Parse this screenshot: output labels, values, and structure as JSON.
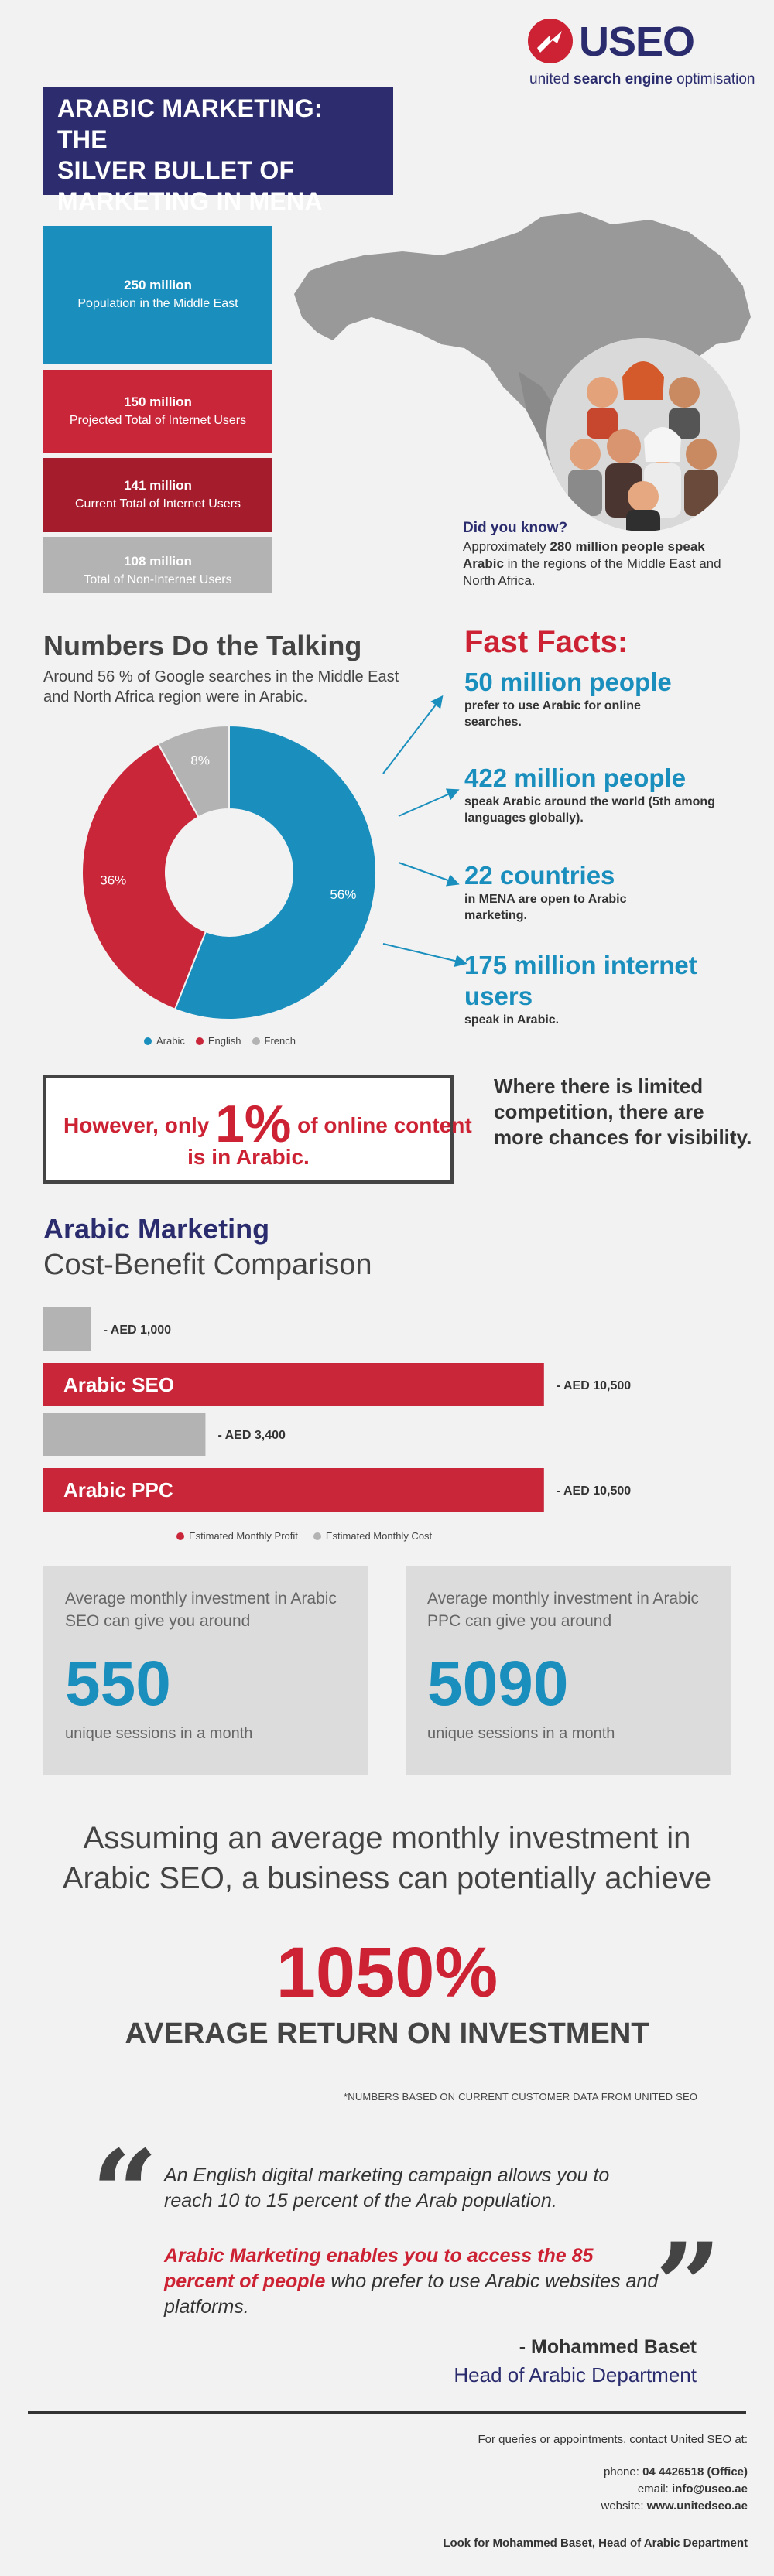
{
  "brand": {
    "name": "USEO",
    "tagline_pre": "united ",
    "tagline_bold": "search engine",
    "tagline_post": " optimisation",
    "color_navy": "#2a2c6e",
    "color_red": "#cc2233",
    "color_blue": "#1a8fbd"
  },
  "title": {
    "line1": "ARABIC MARKETING: THE",
    "line2": "SILVER BULLET OF",
    "line3": "MARKETING IN MENA"
  },
  "stats": [
    {
      "number": "250 million",
      "desc": "Population in the Middle East",
      "color": "#1a8fbd"
    },
    {
      "number": "150 million",
      "desc": "Projected Total of Internet Users",
      "color": "#c9263a"
    },
    {
      "number": "141 million",
      "desc": "Current Total of Internet Users",
      "color": "#a51d2d"
    },
    {
      "number": "108 million",
      "desc": "Total of Non-Internet Users",
      "color": "#b3b3b3"
    }
  ],
  "did_you_know": {
    "heading": "Did you know?",
    "pre": "Approximately ",
    "bold": "280 million people speak Arabic",
    "post": " in the regions of the Middle East and North Africa."
  },
  "numbers": {
    "title": "Numbers Do the Talking",
    "subtitle": "Around 56 % of Google searches in the Middle East and North Africa region were in Arabic."
  },
  "fast_facts": {
    "title": "Fast Facts:",
    "items": [
      {
        "big": "50 million people",
        "small": "prefer to use Arabic for online searches."
      },
      {
        "big": "422 million people",
        "small": "speak Arabic around the world (5th among languages globally)."
      },
      {
        "big": "22 countries",
        "small": "in MENA are open to Arabic marketing."
      },
      {
        "big": "175 million internet users",
        "small": "speak in Arabic."
      }
    ]
  },
  "however": {
    "pre": "However, only ",
    "pct": "1%",
    "post": " of online content",
    "line2": "is in Arabic."
  },
  "visibility": "Where there is limited competition, there are more chances for visibility.",
  "cost_benefit": {
    "title": "Arabic Marketing",
    "subtitle": "Cost-Benefit Comparison"
  },
  "roi": {
    "text": "Assuming an average monthly investment in Arabic SEO, a business can potentially achieve",
    "number": "1050%",
    "label": "AVERAGE RETURN ON INVESTMENT",
    "note": "*NUMBERS  BASED ON CURRENT CUSTOMER DATA FROM UNITED SEO"
  },
  "sessions": [
    {
      "text": "Average monthly investment in Arabic SEO can give you around",
      "number": "550",
      "unit": "unique sessions in a month"
    },
    {
      "text": "Average monthly investment in Arabic PPC can give you around",
      "number": "5090",
      "unit": "unique sessions in a month"
    }
  ],
  "quote": {
    "open": "“",
    "close": "”",
    "p1": "An English digital marketing campaign allows you to reach 10 to 15 percent of the Arab population.",
    "p2_hl": "Arabic Marketing enables you to access the 85 percent of people",
    "p2_rest": " who prefer to use Arabic websites and platforms.",
    "author": "- Mohammed Baset",
    "role": "Head of Arabic Department"
  },
  "contact": {
    "intro": "For queries or appointments, contact United SEO at:",
    "phone_label": "phone: ",
    "phone": "04 4426518 (Office)",
    "email_label": "email: ",
    "email": "info@useo.ae",
    "web_label": "website: ",
    "web": "www.unitedseo.ae",
    "look_for": "Look for Mohammed Baset, Head of Arabic Department"
  },
  "chart_data": [
    {
      "type": "pie",
      "categories": [
        "Arabic",
        "English",
        "French"
      ],
      "values": [
        56,
        36,
        8
      ],
      "labels": [
        "56%",
        "36%",
        "8%"
      ],
      "colors": [
        "#1a8fbd",
        "#c9263a",
        "#b3b3b3"
      ],
      "legend": "bottom"
    },
    {
      "type": "bar",
      "orientation": "horizontal",
      "categories": [
        "Arabic SEO",
        "Arabic PPC"
      ],
      "series": [
        {
          "name": "Estimated Monthly Cost",
          "values": [
            1000,
            3400
          ],
          "labels": [
            "- AED 1,000",
            "- AED 3,400"
          ],
          "color": "#b3b3b3"
        },
        {
          "name": "Estimated Monthly Profit",
          "values": [
            10500,
            10500
          ],
          "labels": [
            "- AED 10,500",
            "- AED 10,500"
          ],
          "color": "#c9263a"
        }
      ],
      "legend": "bottom"
    }
  ]
}
